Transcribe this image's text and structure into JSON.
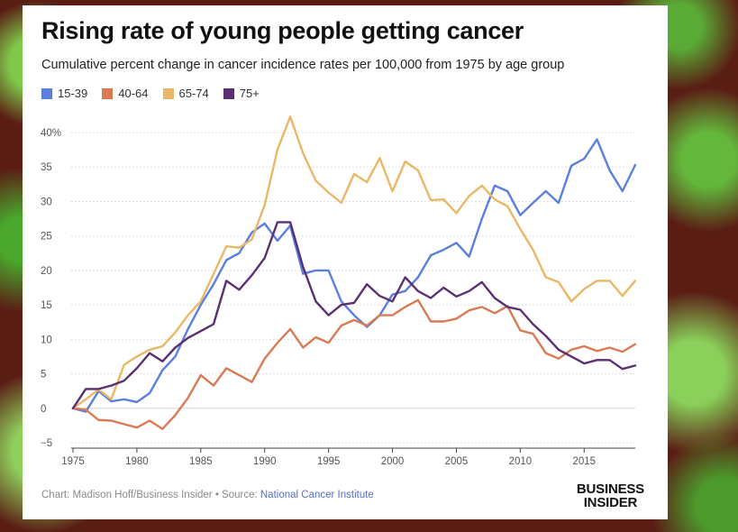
{
  "card": {
    "title": "Rising rate of young people getting cancer",
    "subtitle": "Cumulative percent change in cancer incidence rates per 100,000 from 1975 by age group"
  },
  "legend": [
    {
      "label": "15-39",
      "color": "#5b7fe0"
    },
    {
      "label": "40-64",
      "color": "#d97a55"
    },
    {
      "label": "65-74",
      "color": "#e8b867"
    },
    {
      "label": "75+",
      "color": "#5a2f73"
    }
  ],
  "footer": {
    "credit": "Chart: Madison Hoff/Business Insider • Source: ",
    "source": "National Cancer Institute",
    "brand_line1": "BUSINESS",
    "brand_line2": "INSIDER"
  },
  "chart_data": {
    "type": "line",
    "title": "Rising rate of young people getting cancer",
    "subtitle": "Cumulative percent change in cancer incidence rates per 100,000 from 1975 by age group",
    "xlabel": "",
    "ylabel": "",
    "xlim": [
      1975,
      2019
    ],
    "ylim": [
      -5,
      40
    ],
    "grid": true,
    "x_ticks": [
      1975,
      1980,
      1985,
      1990,
      1995,
      2000,
      2005,
      2010,
      2015
    ],
    "y_ticks": [
      -5,
      0,
      5,
      10,
      15,
      20,
      25,
      30,
      35,
      40
    ],
    "y_tick_labels": [
      "−5",
      "0",
      "5",
      "10",
      "15",
      "20",
      "25",
      "30",
      "35",
      "40%"
    ],
    "x": [
      1975,
      1976,
      1977,
      1978,
      1979,
      1980,
      1981,
      1982,
      1983,
      1984,
      1985,
      1986,
      1987,
      1988,
      1989,
      1990,
      1991,
      1992,
      1993,
      1994,
      1995,
      1996,
      1997,
      1998,
      1999,
      2000,
      2001,
      2002,
      2003,
      2004,
      2005,
      2006,
      2007,
      2008,
      2009,
      2010,
      2011,
      2012,
      2013,
      2014,
      2015,
      2016,
      2017,
      2018,
      2019
    ],
    "series": [
      {
        "name": "15-39",
        "color": "#5b7fe0",
        "values": [
          0,
          -0.5,
          2.5,
          1,
          1.3,
          0.9,
          2.2,
          5.5,
          7.5,
          11.5,
          15,
          18,
          21.5,
          22.5,
          25.5,
          26.8,
          24.3,
          26.5,
          19.5,
          20,
          20,
          15.5,
          13.5,
          11.8,
          13.5,
          16.5,
          17,
          19,
          22.2,
          23,
          24,
          22,
          27.5,
          32.3,
          31.5,
          28,
          29.8,
          31.5,
          29.8,
          35.2,
          36.2,
          39,
          34.5,
          31.5,
          35.3
        ]
      },
      {
        "name": "40-64",
        "color": "#d97a55",
        "values": [
          0,
          -0.2,
          -1.7,
          -1.8,
          -2.3,
          -2.8,
          -1.8,
          -3,
          -1,
          1.5,
          4.8,
          3.3,
          5.8,
          4.8,
          3.8,
          7.2,
          9.5,
          11.5,
          8.8,
          10.3,
          9.5,
          12,
          12.8,
          12,
          13.5,
          13.5,
          14.7,
          15.7,
          12.6,
          12.6,
          13,
          14.2,
          14.7,
          13.8,
          14.8,
          11.3,
          10.8,
          8,
          7.2,
          8.5,
          9,
          8.3,
          8.8,
          8.2,
          9.3
        ]
      },
      {
        "name": "65-74",
        "color": "#e8b867",
        "values": [
          0,
          1.3,
          2.7,
          1.3,
          6.3,
          7.5,
          8.5,
          9,
          11,
          13.5,
          15.5,
          19.5,
          23.5,
          23.3,
          24.5,
          29.5,
          37.5,
          42.3,
          37,
          33,
          31.3,
          29.8,
          34,
          32.8,
          36.3,
          31.5,
          35.8,
          34.5,
          30.2,
          30.3,
          28.3,
          30.8,
          32.3,
          30.3,
          29.3,
          26,
          23,
          19,
          18.3,
          15.5,
          17.3,
          18.5,
          18.5,
          16.3,
          18.5
        ]
      },
      {
        "name": "75+",
        "color": "#5a2f73",
        "values": [
          0,
          2.8,
          2.8,
          3.3,
          4,
          5.8,
          8,
          6.8,
          8.8,
          10.2,
          11.2,
          12.2,
          18.5,
          17.2,
          19.3,
          21.8,
          27,
          27,
          20.5,
          15.5,
          13.5,
          15,
          15.3,
          18,
          16.3,
          15.5,
          19,
          17,
          16,
          17.5,
          16.2,
          17,
          18.3,
          16,
          14.7,
          14.3,
          12.2,
          10.5,
          8.5,
          7.5,
          6.5,
          7,
          7,
          5.7,
          6.2
        ]
      }
    ]
  }
}
